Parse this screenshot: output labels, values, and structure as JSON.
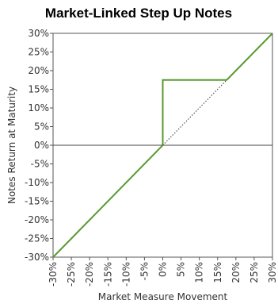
{
  "chart_data": {
    "type": "line",
    "title": "Market-Linked Step Up Notes",
    "xlabel": "Market Measure Movement",
    "ylabel": "Notes Return at Maturity",
    "xlim": [
      -30,
      30
    ],
    "ylim": [
      -30,
      30
    ],
    "x_ticks": [
      "-30%",
      "-25%",
      "-20%",
      "-15%",
      "-10%",
      "-5%",
      "0%",
      "5%",
      "10%",
      "15%",
      "20%",
      "25%",
      "30%"
    ],
    "y_ticks": [
      "30%",
      "25%",
      "20%",
      "15%",
      "10%",
      "5%",
      "0%",
      "-5%",
      "-10%",
      "-15%",
      "-20%",
      "-25%",
      "-30%"
    ],
    "series": [
      {
        "style": "solid",
        "color": "#5a9a2f",
        "points": [
          [
            -30,
            -30
          ],
          [
            0,
            0
          ],
          [
            0,
            17.5
          ],
          [
            17.5,
            17.5
          ],
          [
            30,
            30
          ]
        ]
      },
      {
        "style": "dotted",
        "color": "#333333",
        "points": [
          [
            0,
            0
          ],
          [
            17.5,
            17.5
          ]
        ]
      }
    ],
    "grid": false,
    "zero_line": true
  }
}
